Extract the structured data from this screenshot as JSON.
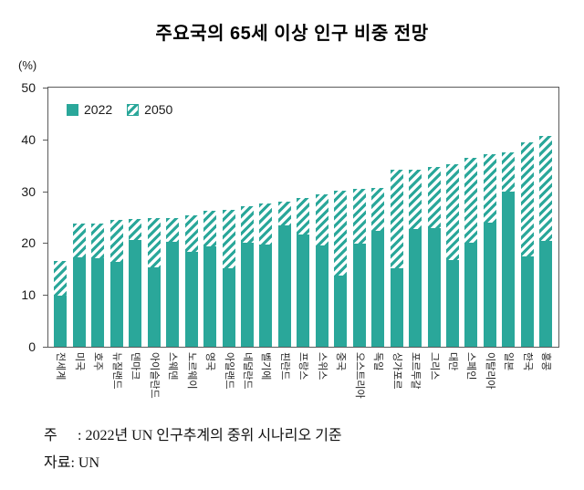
{
  "title": "주요국의 65세 이상 인구 비중 전망",
  "y_axis": {
    "unit_label": "(%)",
    "ticks": [
      0,
      10,
      20,
      30,
      40,
      50
    ],
    "max": 50
  },
  "legend": {
    "items": [
      {
        "label": "2022",
        "swatch": "solid"
      },
      {
        "label": "2050",
        "swatch": "hatched"
      }
    ]
  },
  "colors": {
    "bar_teal": "#2aa79a",
    "axis_gray": "#5a5a5a",
    "text_black": "#1a1a1a"
  },
  "footnotes": {
    "note_label": "주",
    "note_text": ": 2022년 UN 인구추계의 중위 시나리오 기준",
    "source_label": "자료",
    "source_text": ": UN"
  },
  "chart_data": {
    "type": "bar",
    "title": "주요국의 65세 이상 인구 비중 전망",
    "xlabel": "",
    "ylabel": "(%)",
    "ylim": [
      0,
      50
    ],
    "grid": false,
    "legend_position": "inside-top-left",
    "bar_style_note": "2022 drawn solid; 2050 drawn as hatched extension stacked from the 2022 level up to the 2050 value",
    "categories": [
      "전세계",
      "미국",
      "호주",
      "뉴질랜드",
      "덴마크",
      "아이슬란드",
      "스웨덴",
      "노르웨이",
      "영국",
      "아일랜드",
      "네덜란드",
      "벨기에",
      "핀란드",
      "프랑스",
      "스위스",
      "중국",
      "오스트리아",
      "독일",
      "싱가포르",
      "포르투갈",
      "그리스",
      "대만",
      "스페인",
      "이탈리아",
      "일본",
      "한국",
      "홍콩"
    ],
    "series": [
      {
        "name": "2022",
        "style": "solid",
        "values": [
          9.9,
          17.3,
          17.1,
          16.4,
          20.6,
          15.3,
          20.2,
          18.4,
          19.3,
          15.2,
          20.0,
          19.8,
          23.4,
          21.6,
          19.5,
          13.7,
          19.9,
          22.4,
          15.1,
          22.7,
          22.9,
          16.7,
          20.1,
          24.0,
          29.9,
          17.4,
          20.5
        ]
      },
      {
        "name": "2050",
        "style": "hatched",
        "values": [
          16.5,
          23.7,
          23.8,
          24.4,
          24.7,
          24.8,
          24.9,
          25.4,
          26.3,
          26.5,
          27.2,
          27.7,
          28.0,
          28.7,
          29.4,
          30.1,
          30.4,
          30.6,
          34.2,
          34.2,
          34.6,
          35.3,
          36.5,
          37.1,
          37.5,
          39.4,
          40.6
        ]
      }
    ]
  }
}
